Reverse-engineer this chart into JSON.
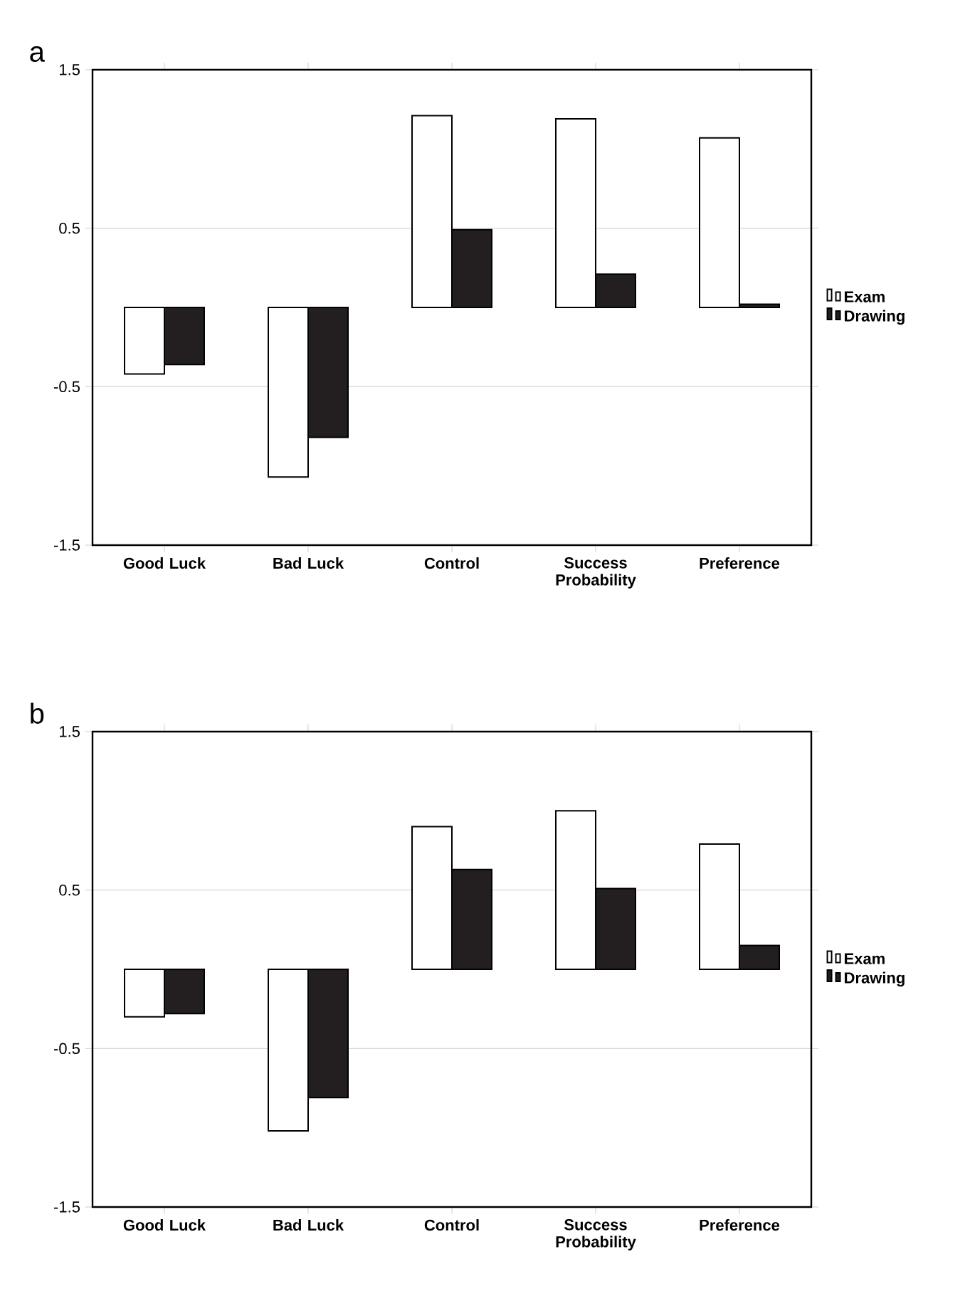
{
  "chart_data": [
    {
      "type": "bar",
      "title": "a",
      "categories": [
        "Good Luck",
        "Bad Luck",
        "Control",
        "Success Probability",
        "Preference"
      ],
      "series": [
        {
          "name": "Exam",
          "color": "#ffffff",
          "values": [
            -0.42,
            -1.07,
            1.21,
            1.19,
            1.07
          ]
        },
        {
          "name": "Drawing",
          "color": "#231f20",
          "values": [
            -0.36,
            -0.82,
            0.49,
            0.21,
            0.02
          ]
        }
      ],
      "ylim": [
        -1.5,
        1.5
      ],
      "yticks": [
        -1.5,
        -0.5,
        0.5,
        1.5
      ],
      "grid": "y",
      "legend": "right"
    },
    {
      "type": "bar",
      "title": "b",
      "categories": [
        "Good Luck",
        "Bad Luck",
        "Control",
        "Success Probability",
        "Preference"
      ],
      "series": [
        {
          "name": "Exam",
          "color": "#ffffff",
          "values": [
            -0.3,
            -1.02,
            0.9,
            1.0,
            0.79
          ]
        },
        {
          "name": "Drawing",
          "color": "#231f20",
          "values": [
            -0.28,
            -0.81,
            0.63,
            0.51,
            0.15
          ]
        }
      ],
      "ylim": [
        -1.5,
        1.5
      ],
      "yticks": [
        -1.5,
        -0.5,
        0.5,
        1.5
      ],
      "grid": "y",
      "legend": "right"
    }
  ]
}
